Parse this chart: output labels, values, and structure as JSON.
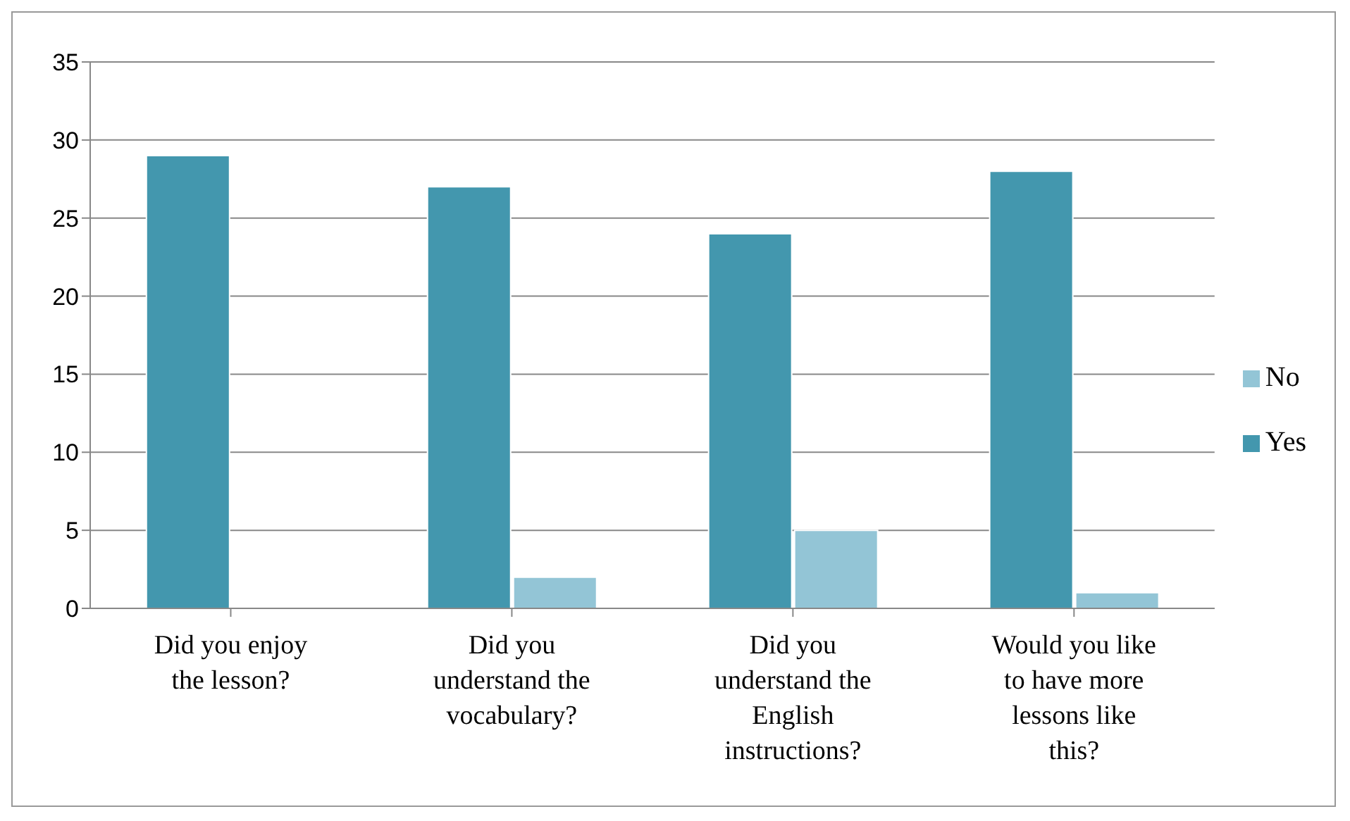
{
  "chart_data": {
    "type": "bar",
    "categories": [
      "Did you enjoy the lesson?",
      "Did you understand the vocabulary?",
      "Did you understand the English instructions?",
      "Would you like to have more lessons like this?"
    ],
    "series": [
      {
        "name": "Yes",
        "color": "#4397ae",
        "values": [
          29,
          27,
          24,
          28
        ]
      },
      {
        "name": "No",
        "color": "#93c5d6",
        "values": [
          0,
          2,
          5,
          1
        ]
      }
    ],
    "ylim": [
      0,
      35
    ],
    "yticks": [
      0,
      5,
      10,
      15,
      20,
      25,
      30,
      35
    ],
    "grid": "y",
    "legend": "right"
  }
}
